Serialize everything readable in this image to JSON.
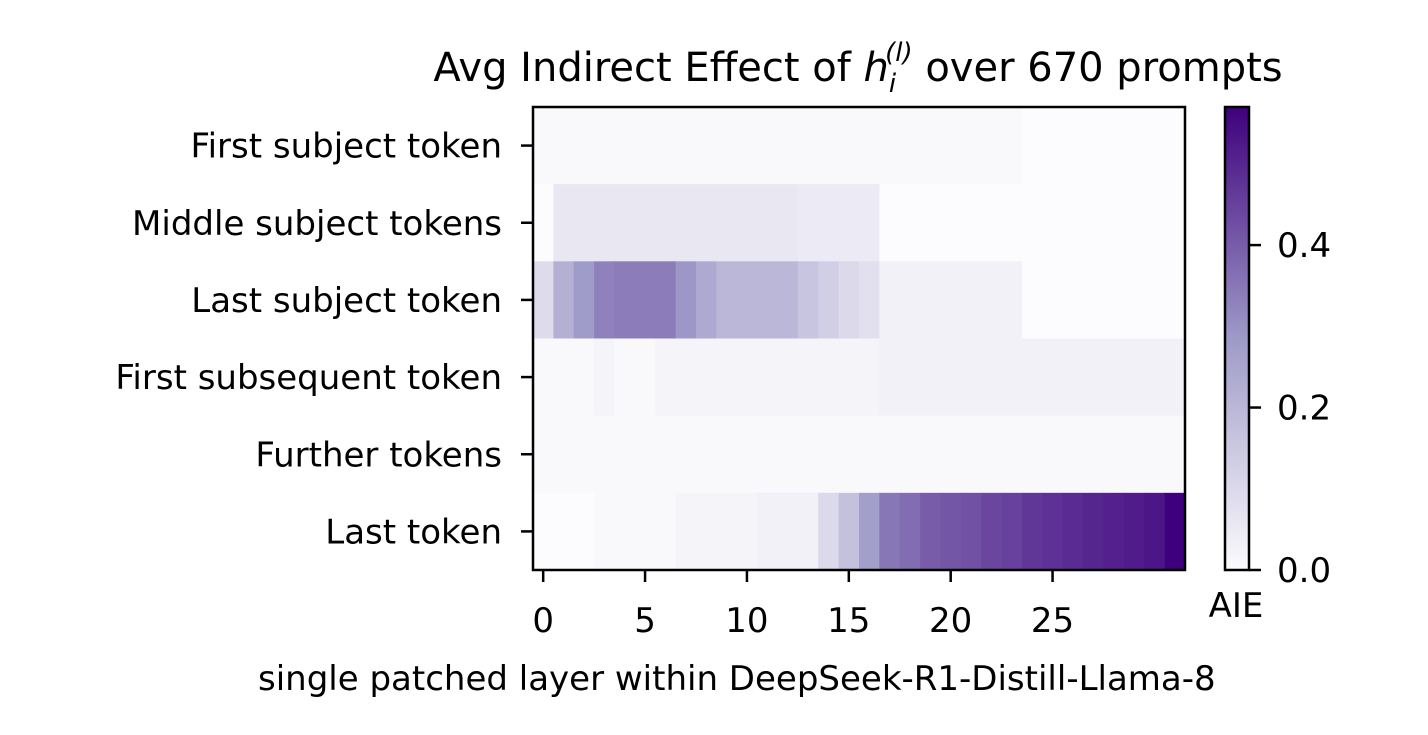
{
  "chart_data": {
    "type": "heatmap",
    "title_prefix": "Avg Indirect Effect of ",
    "title_var": "h",
    "title_sub": "i",
    "title_sup": "(l)",
    "title_suffix": " over 670 prompts",
    "xlabel": "single patched layer within DeepSeek-R1-Distill-Llama-8",
    "colorbar_label": "AIE",
    "x_ticks": [
      "0",
      "5",
      "10",
      "15",
      "20",
      "25"
    ],
    "x_tick_values": [
      0,
      5,
      10,
      15,
      20,
      25
    ],
    "colorbar_ticks": [
      "0.0",
      "0.2",
      "0.4"
    ],
    "colorbar_tick_values": [
      0.0,
      0.2,
      0.4
    ],
    "colorbar_range": [
      0.0,
      0.57
    ],
    "colormap": {
      "low": "#fcfbfd",
      "mid": "#9e9ac8",
      "high": "#3f007d"
    },
    "rows": [
      "First subject token",
      "Middle subject tokens",
      "Last subject token",
      "First subsequent token",
      "Further tokens",
      "Last token"
    ],
    "layers": 32,
    "values": [
      [
        0.01,
        0.01,
        0.01,
        0.01,
        0.01,
        0.01,
        0.01,
        0.01,
        0.01,
        0.01,
        0.01,
        0.01,
        0.01,
        0.01,
        0.01,
        0.01,
        0.01,
        0.01,
        0.01,
        0.01,
        0.01,
        0.01,
        0.01,
        0.01,
        0.0,
        0.0,
        0.0,
        0.0,
        0.0,
        0.0,
        0.0,
        0.0
      ],
      [
        0.0,
        0.06,
        0.06,
        0.06,
        0.06,
        0.06,
        0.06,
        0.06,
        0.06,
        0.06,
        0.06,
        0.06,
        0.06,
        0.05,
        0.05,
        0.05,
        0.05,
        0.0,
        0.0,
        0.0,
        0.0,
        0.0,
        0.0,
        0.0,
        0.0,
        0.0,
        0.0,
        0.0,
        0.0,
        0.0,
        0.0,
        0.0
      ],
      [
        0.09,
        0.22,
        0.28,
        0.33,
        0.34,
        0.34,
        0.34,
        0.29,
        0.24,
        0.2,
        0.2,
        0.2,
        0.2,
        0.16,
        0.13,
        0.1,
        0.08,
        0.03,
        0.03,
        0.03,
        0.03,
        0.03,
        0.03,
        0.03,
        0.0,
        0.0,
        0.0,
        0.0,
        0.0,
        0.0,
        0.0,
        0.0
      ],
      [
        0.01,
        0.01,
        0.01,
        0.02,
        0.01,
        0.01,
        0.02,
        0.02,
        0.02,
        0.02,
        0.02,
        0.02,
        0.02,
        0.02,
        0.02,
        0.02,
        0.02,
        0.03,
        0.03,
        0.03,
        0.03,
        0.03,
        0.03,
        0.03,
        0.03,
        0.03,
        0.03,
        0.03,
        0.03,
        0.03,
        0.03,
        0.03
      ],
      [
        0.01,
        0.01,
        0.01,
        0.01,
        0.01,
        0.01,
        0.01,
        0.01,
        0.01,
        0.01,
        0.01,
        0.01,
        0.01,
        0.01,
        0.01,
        0.01,
        0.01,
        0.01,
        0.01,
        0.01,
        0.01,
        0.01,
        0.01,
        0.01,
        0.01,
        0.01,
        0.01,
        0.01,
        0.01,
        0.01,
        0.01,
        0.01
      ],
      [
        0.0,
        0.0,
        0.0,
        0.01,
        0.01,
        0.01,
        0.01,
        0.02,
        0.02,
        0.02,
        0.02,
        0.03,
        0.03,
        0.03,
        0.1,
        0.17,
        0.27,
        0.35,
        0.37,
        0.4,
        0.41,
        0.42,
        0.44,
        0.45,
        0.47,
        0.48,
        0.49,
        0.5,
        0.51,
        0.52,
        0.53,
        0.57
      ]
    ]
  }
}
